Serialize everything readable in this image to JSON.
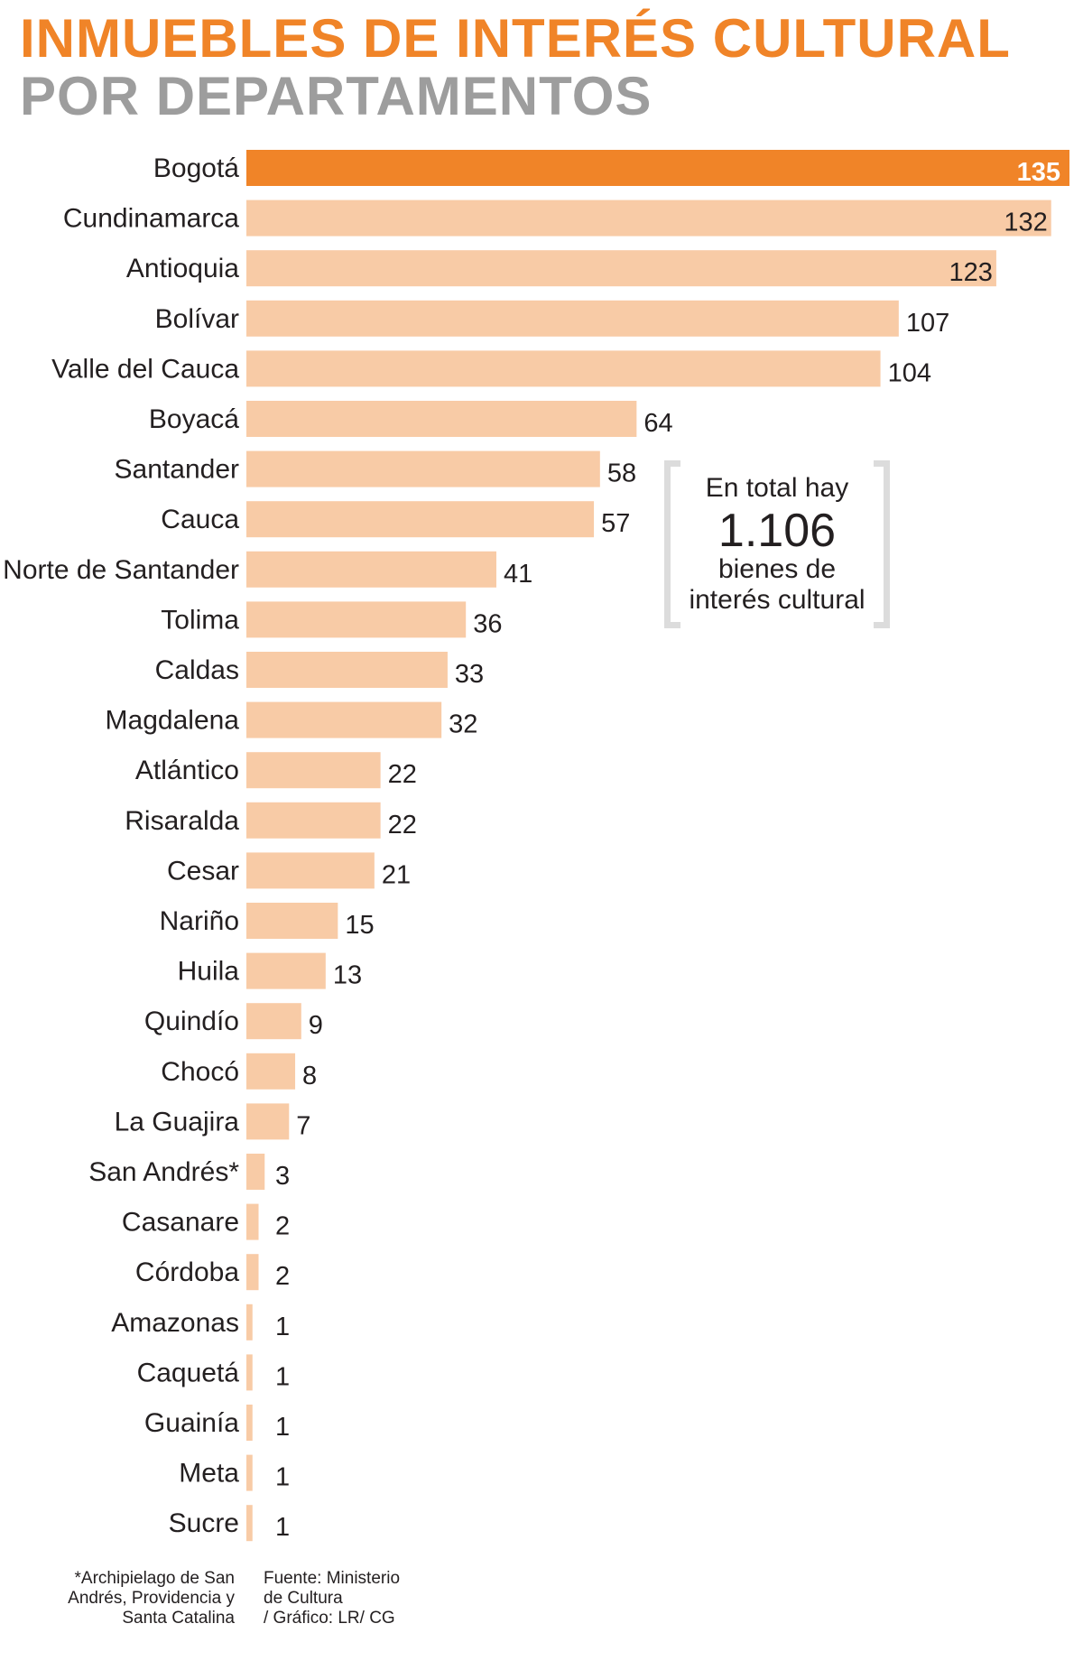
{
  "title_line1": "INMUEBLES DE INTERÉS CULTURAL",
  "title_line2": "POR DEPARTAMENTOS",
  "total_box": {
    "line1": "En total hay",
    "value": "1.106",
    "line3": "bienes de",
    "line4": "interés cultural"
  },
  "footnote_lines": [
    "*Archipielago de San",
    "Andrés, Providencia y",
    "Santa Catalina"
  ],
  "source_lines": [
    "Fuente: Ministerio",
    "de Cultura",
    "/ Gráfico: LR/ CG"
  ],
  "colors": {
    "highlight": "#f08428",
    "bar": "#f8cba6",
    "title_gray": "#9d9d9d"
  },
  "chart_data": {
    "type": "bar",
    "orientation": "horizontal",
    "title": "INMUEBLES DE INTERÉS CULTURAL POR DEPARTAMENTOS",
    "categories": [
      "Bogotá",
      "Cundinamarca",
      "Antioquia",
      "Bolívar",
      "Valle del Cauca",
      "Boyacá",
      "Santander",
      "Cauca",
      "Norte de Santander",
      "Tolima",
      "Caldas",
      "Magdalena",
      "Atlántico",
      "Risaralda",
      "Cesar",
      "Nariño",
      "Huila",
      "Quindío",
      "Chocó",
      "La Guajira",
      "San Andrés*",
      "Casanare",
      "Córdoba",
      "Amazonas",
      "Caquetá",
      "Guainía",
      "Meta",
      "Sucre"
    ],
    "values": [
      135,
      132,
      123,
      107,
      104,
      64,
      58,
      57,
      41,
      36,
      33,
      32,
      22,
      22,
      21,
      15,
      13,
      9,
      8,
      7,
      3,
      2,
      2,
      1,
      1,
      1,
      1,
      1
    ],
    "highlight": "Bogotá",
    "xlim": [
      0,
      135
    ],
    "grid": false,
    "legend": "none"
  }
}
